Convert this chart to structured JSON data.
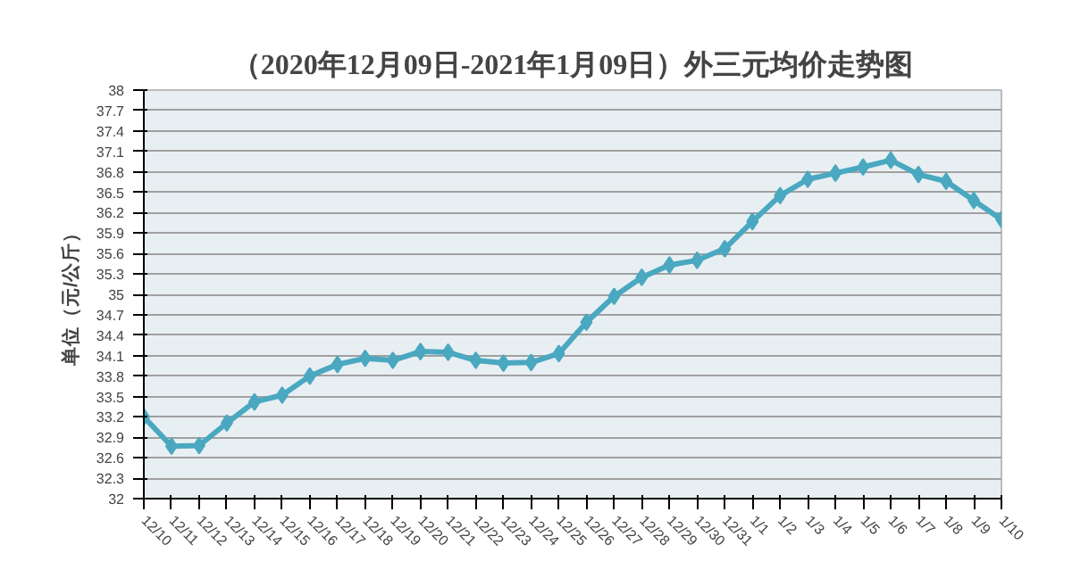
{
  "chart_data": {
    "type": "line",
    "title": "（2020年12月09日-2021年1月09日）外三元均价走势图",
    "ylabel": "单位（元/公斤）",
    "categories": [
      "12/10",
      "12/11",
      "12/12",
      "12/13",
      "12/14",
      "12/15",
      "12/16",
      "12/17",
      "12/18",
      "12/19",
      "12/20",
      "12/21",
      "12/22",
      "12/23",
      "12/24",
      "12/25",
      "12/26",
      "12/27",
      "12/28",
      "12/29",
      "12/30",
      "12/31",
      "1/1",
      "1/2",
      "1/3",
      "1/4",
      "1/5",
      "1/6",
      "1/7",
      "1/8",
      "1/9",
      "1/10"
    ],
    "series": [
      {
        "color": "#4aa8c0",
        "values": [
          33.2,
          32.77,
          32.78,
          33.11,
          33.42,
          33.52,
          33.8,
          33.97,
          34.06,
          34.03,
          34.16,
          34.15,
          34.03,
          33.99,
          34.0,
          34.13,
          34.59,
          34.97,
          35.25,
          35.43,
          35.5,
          35.67,
          36.07,
          36.45,
          36.69,
          36.78,
          36.87,
          36.97,
          36.76,
          36.66,
          36.38,
          36.1
        ]
      }
    ],
    "ylim": [
      32,
      38
    ],
    "yticks": [
      32,
      32.3,
      32.6,
      32.9,
      33.2,
      33.5,
      33.8,
      34.1,
      34.4,
      34.7,
      35,
      35.3,
      35.6,
      35.9,
      36.2,
      36.5,
      36.8,
      37.1,
      37.4,
      37.7,
      38
    ],
    "grid": "y",
    "marker": "diamond"
  }
}
